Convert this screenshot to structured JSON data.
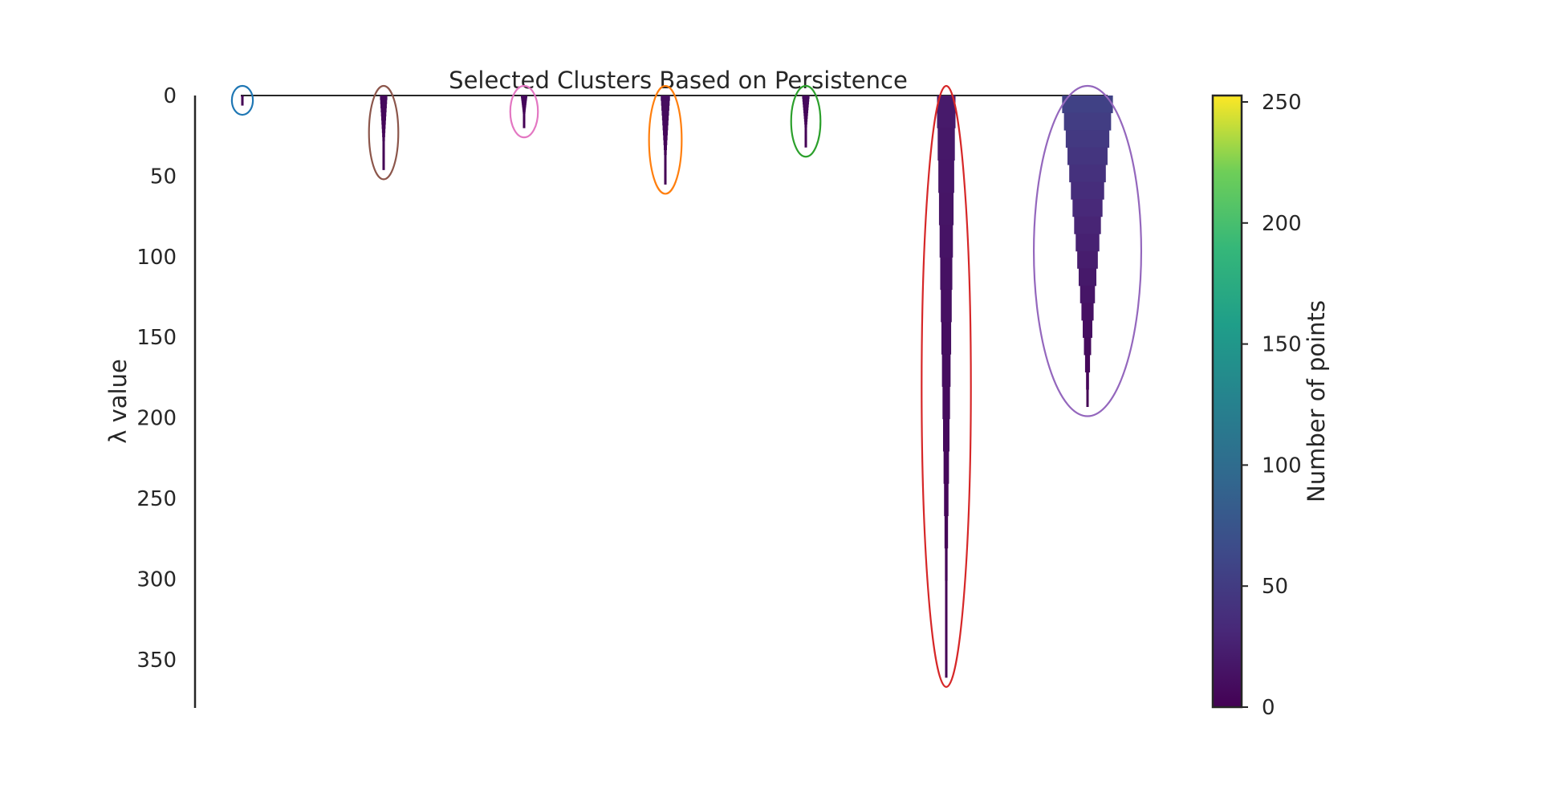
{
  "chart_data": {
    "type": "other",
    "title": "Selected Clusters Based on Persistence",
    "ylabel": "λ value",
    "ylim": [
      0,
      380
    ],
    "y_inverted": true,
    "y_ticks": [
      0,
      50,
      100,
      150,
      200,
      250,
      300,
      350
    ],
    "colorbar": {
      "label": "Number of points",
      "range": [
        0,
        250
      ],
      "ticks": [
        0,
        50,
        100,
        150,
        200,
        250
      ],
      "colormap": "viridis"
    },
    "clusters": [
      {
        "ellipse_color": "#1f77b4",
        "lambda_max": 6,
        "initial_points": 3
      },
      {
        "ellipse_color": "#8c564b",
        "lambda_max": 46,
        "initial_points": 8
      },
      {
        "ellipse_color": "#e377c2",
        "lambda_max": 20,
        "initial_points": 7
      },
      {
        "ellipse_color": "#ff7f0e",
        "lambda_max": 55,
        "initial_points": 10
      },
      {
        "ellipse_color": "#2ca02c",
        "lambda_max": 32,
        "initial_points": 8
      },
      {
        "ellipse_color": "#d62728",
        "lambda_max": 361,
        "initial_points": 20
      },
      {
        "ellipse_color": "#9467bd",
        "lambda_max": 193,
        "initial_points": 55
      }
    ]
  }
}
